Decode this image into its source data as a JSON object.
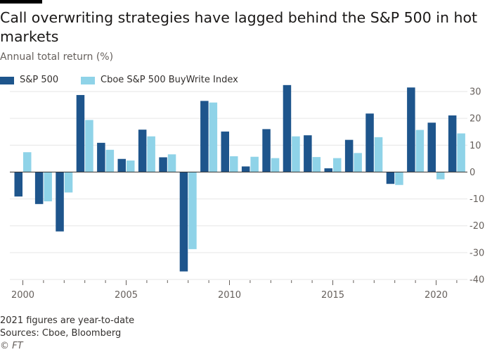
{
  "header": {
    "title": "Call overwriting strategies have lagged behind the S&P 500 in hot markets",
    "subtitle": "Annual total return (%)"
  },
  "footer": {
    "note": "2021 figures are year-to-date",
    "source": "Sources: Cboe, Bloomberg",
    "credit": "© FT"
  },
  "colors": {
    "sp500": "#1e558c",
    "buywrite": "#8fd3e8",
    "grid": "#e6e6e6",
    "zero": "#33302e",
    "axis_text": "#66605c"
  },
  "chart_data": {
    "type": "bar",
    "title": "Call overwriting strategies have lagged behind the S&P 500 in hot markets",
    "ylabel": "Annual total return (%)",
    "xlabel": "",
    "categories": [
      2000,
      2001,
      2002,
      2003,
      2004,
      2005,
      2006,
      2007,
      2008,
      2009,
      2010,
      2011,
      2012,
      2013,
      2014,
      2015,
      2016,
      2017,
      2018,
      2019,
      2020,
      2021
    ],
    "series": [
      {
        "name": "S&P 500",
        "color_key": "sp500",
        "values": [
          -9.1,
          -11.9,
          -22.1,
          28.7,
          10.9,
          4.9,
          15.8,
          5.5,
          -37.0,
          26.5,
          15.1,
          2.1,
          16.0,
          32.4,
          13.7,
          1.4,
          12.0,
          21.8,
          -4.4,
          31.5,
          18.4,
          21.1
        ]
      },
      {
        "name": "Cboe S&P 500 BuyWrite Index",
        "color_key": "buywrite",
        "values": [
          7.4,
          -10.9,
          -7.6,
          19.4,
          8.3,
          4.3,
          13.3,
          6.6,
          -28.7,
          25.9,
          5.9,
          5.7,
          5.2,
          13.3,
          5.6,
          5.2,
          7.1,
          13.0,
          -4.8,
          15.7,
          -2.7,
          14.4
        ]
      }
    ],
    "ylim": [
      -40,
      30
    ],
    "yticks": [
      30,
      20,
      10,
      0,
      -10,
      -20,
      -30,
      -40
    ],
    "xticks": [
      2000,
      2005,
      2010,
      2015,
      2020
    ],
    "grid": true,
    "legend": "top-left"
  }
}
